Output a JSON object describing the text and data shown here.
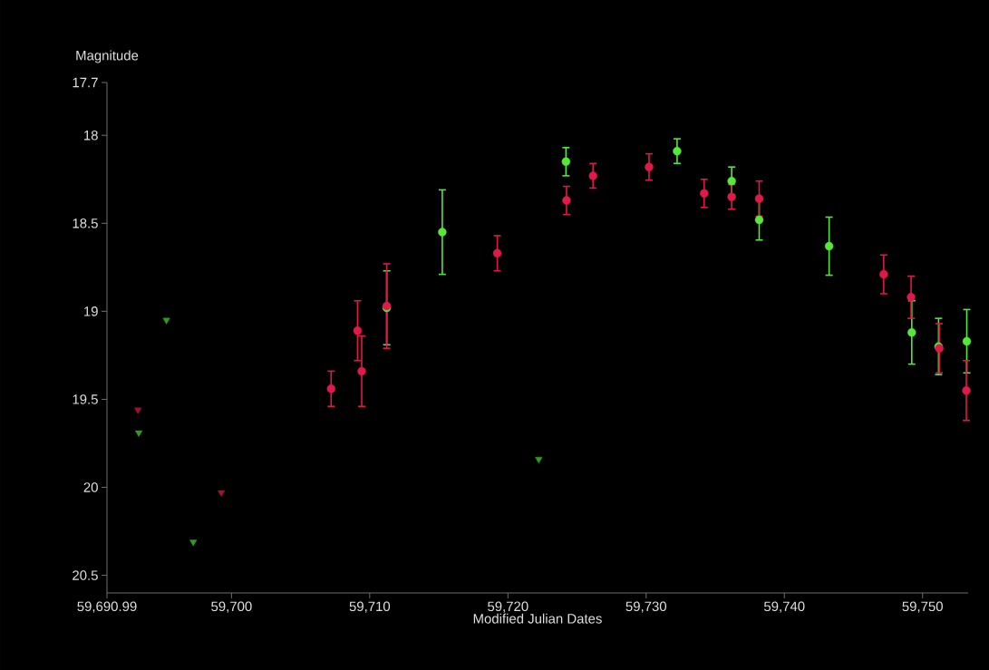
{
  "chart_data": {
    "type": "scatter",
    "xlabel": "Modified Julian Dates",
    "ylabel": "Magnitude",
    "xlim": [
      59690.99,
      59753.3
    ],
    "ylim": [
      20.6,
      17.7
    ],
    "xticks": [
      {
        "value": 59690.99,
        "label": "59,690.99"
      },
      {
        "value": 59700,
        "label": "59,700"
      },
      {
        "value": 59710,
        "label": "59,710"
      },
      {
        "value": 59720,
        "label": "59,720"
      },
      {
        "value": 59730,
        "label": "59,730"
      },
      {
        "value": 59740,
        "label": "59,740"
      },
      {
        "value": 59750,
        "label": "59,750"
      }
    ],
    "yticks": [
      17.7,
      18,
      18.5,
      19,
      19.5,
      20,
      20.5
    ],
    "series": [
      {
        "color": "#55e838",
        "marker": "circle",
        "x": [
          59711.23,
          59715.25,
          59724.2,
          59732.24,
          59736.19,
          59738.18,
          59743.24,
          59749.22,
          59751.16,
          59753.2
        ],
        "values": [
          18.98,
          18.55,
          18.15,
          18.09,
          18.26,
          18.48,
          18.63,
          19.12,
          19.2,
          19.17
        ],
        "errors": [
          0.21,
          0.24,
          0.08,
          0.07,
          0.08,
          0.115,
          0.165,
          0.18,
          0.16,
          0.18
        ]
      },
      {
        "color": "#e0194a",
        "marker": "circle",
        "x": [
          59707.21,
          59709.12,
          59709.42,
          59711.23,
          59719.23,
          59724.24,
          59726.16,
          59730.21,
          59734.2,
          59736.19,
          59738.18,
          59747.19,
          59749.17,
          59751.21,
          59753.17
        ],
        "values": [
          19.44,
          19.11,
          19.34,
          18.97,
          18.67,
          18.37,
          18.23,
          18.18,
          18.33,
          18.35,
          18.36,
          18.79,
          18.92,
          19.21,
          19.45
        ],
        "errors": [
          0.1,
          0.17,
          0.2,
          0.24,
          0.1,
          0.08,
          0.07,
          0.075,
          0.08,
          0.07,
          0.1,
          0.11,
          0.12,
          0.14,
          0.17
        ]
      },
      {
        "color": "#2e9e1e",
        "marker": "triangle",
        "x": [
          59693.29,
          59695.29,
          59697.23,
          59722.23
        ],
        "values": [
          19.69,
          19.05,
          20.31,
          19.84
        ]
      },
      {
        "color": "#a3122e",
        "marker": "triangle",
        "x": [
          59693.23,
          59699.26
        ],
        "values": [
          19.56,
          20.03
        ]
      }
    ]
  }
}
